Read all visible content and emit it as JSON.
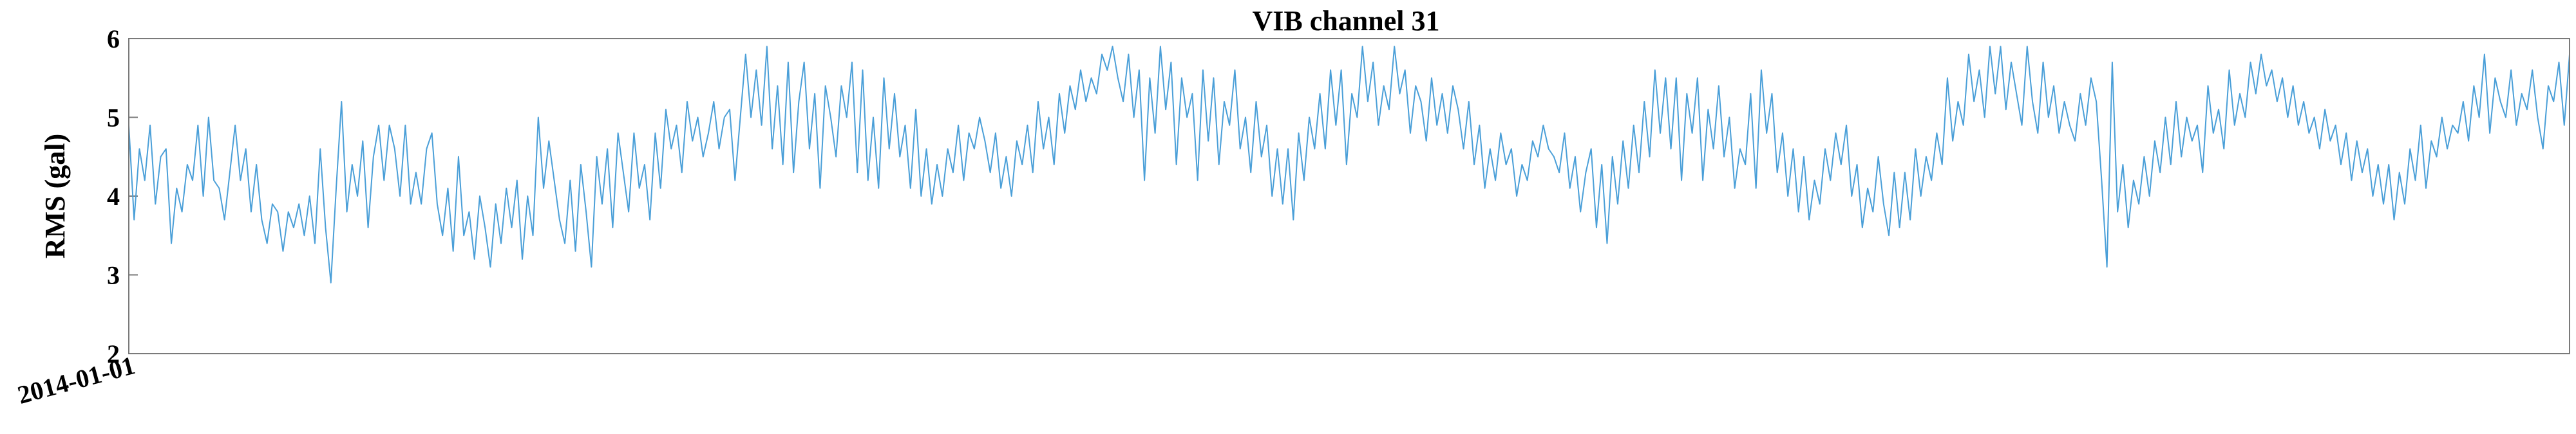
{
  "chart_data": {
    "type": "line",
    "title": "VIB channel 31",
    "xlabel": "",
    "ylabel": "RMS (gal)",
    "ylim": [
      2,
      6
    ],
    "yticks": [
      2,
      3,
      4,
      5,
      6
    ],
    "xticks": [
      "2014-01-01"
    ],
    "grid": false,
    "legend": "none",
    "series_color": "#4a9fd8",
    "series": [
      {
        "values": [
          4.9,
          3.7,
          4.6,
          4.2,
          4.9,
          3.9,
          4.5,
          4.6,
          3.4,
          4.1,
          3.8,
          4.4,
          4.2,
          4.9,
          4.0,
          5.0,
          4.2,
          4.1,
          3.7,
          4.3,
          4.9,
          4.2,
          4.6,
          3.8,
          4.4,
          3.7,
          3.4,
          3.9,
          3.8,
          3.3,
          3.8,
          3.6,
          3.9,
          3.5,
          4.0,
          3.4,
          4.6,
          3.6,
          2.9,
          4.1,
          5.2,
          3.8,
          4.4,
          4.0,
          4.7,
          3.6,
          4.5,
          4.9,
          4.2,
          4.9,
          4.6,
          4.0,
          4.9,
          3.9,
          4.3,
          3.9,
          4.6,
          4.8,
          3.9,
          3.5,
          4.1,
          3.3,
          4.5,
          3.5,
          3.8,
          3.2,
          4.0,
          3.6,
          3.1,
          3.9,
          3.4,
          4.1,
          3.6,
          4.2,
          3.2,
          4.0,
          3.5,
          5.0,
          4.1,
          4.7,
          4.2,
          3.7,
          3.4,
          4.2,
          3.3,
          4.4,
          3.8,
          3.1,
          4.5,
          3.9,
          4.6,
          3.6,
          4.8,
          4.3,
          3.8,
          4.8,
          4.1,
          4.4,
          3.7,
          4.8,
          4.1,
          5.1,
          4.6,
          4.9,
          4.3,
          5.2,
          4.7,
          5.0,
          4.5,
          4.8,
          5.2,
          4.6,
          5.0,
          5.1,
          4.2,
          5.0,
          5.8,
          5.0,
          5.6,
          4.9,
          5.9,
          4.6,
          5.4,
          4.4,
          5.7,
          4.3,
          5.2,
          5.7,
          4.6,
          5.3,
          4.1,
          5.4,
          5.0,
          4.5,
          5.4,
          5.0,
          5.7,
          4.3,
          5.6,
          4.2,
          5.0,
          4.1,
          5.5,
          4.6,
          5.3,
          4.5,
          4.9,
          4.1,
          5.1,
          4.0,
          4.6,
          3.9,
          4.4,
          4.0,
          4.6,
          4.3,
          4.9,
          4.2,
          4.8,
          4.6,
          5.0,
          4.7,
          4.3,
          4.8,
          4.1,
          4.5,
          4.0,
          4.7,
          4.4,
          4.9,
          4.3,
          5.2,
          4.6,
          5.0,
          4.4,
          5.3,
          4.8,
          5.4,
          5.1,
          5.6,
          5.2,
          5.5,
          5.3,
          5.8,
          5.6,
          5.9,
          5.5,
          5.2,
          5.8,
          5.0,
          5.6,
          4.2,
          5.5,
          4.8,
          5.9,
          5.1,
          5.7,
          4.4,
          5.5,
          5.0,
          5.3,
          4.2,
          5.6,
          4.7,
          5.5,
          4.4,
          5.2,
          4.9,
          5.6,
          4.6,
          5.0,
          4.3,
          5.2,
          4.5,
          4.9,
          4.0,
          4.6,
          3.9,
          4.6,
          3.7,
          4.8,
          4.2,
          5.0,
          4.6,
          5.3,
          4.6,
          5.6,
          4.9,
          5.6,
          4.4,
          5.3,
          5.0,
          5.9,
          5.2,
          5.7,
          4.9,
          5.4,
          5.1,
          5.9,
          5.3,
          5.6,
          4.8,
          5.4,
          5.2,
          4.7,
          5.5,
          4.9,
          5.3,
          4.8,
          5.4,
          5.1,
          4.6,
          5.2,
          4.4,
          4.9,
          4.1,
          4.6,
          4.2,
          4.8,
          4.4,
          4.6,
          4.0,
          4.4,
          4.2,
          4.7,
          4.5,
          4.9,
          4.6,
          4.5,
          4.3,
          4.8,
          4.1,
          4.5,
          3.8,
          4.3,
          4.6,
          3.6,
          4.4,
          3.4,
          4.5,
          3.9,
          4.7,
          4.1,
          4.9,
          4.3,
          5.2,
          4.5,
          5.6,
          4.8,
          5.5,
          4.6,
          5.5,
          4.2,
          5.3,
          4.8,
          5.5,
          4.2,
          5.1,
          4.6,
          5.4,
          4.5,
          5.0,
          4.1,
          4.6,
          4.4,
          5.3,
          4.1,
          5.6,
          4.8,
          5.3,
          4.3,
          4.8,
          4.0,
          4.6,
          3.8,
          4.5,
          3.7,
          4.2,
          3.9,
          4.6,
          4.2,
          4.8,
          4.4,
          4.9,
          4.0,
          4.4,
          3.6,
          4.1,
          3.8,
          4.5,
          3.9,
          3.5,
          4.3,
          3.6,
          4.3,
          3.7,
          4.6,
          4.0,
          4.5,
          4.2,
          4.8,
          4.4,
          5.5,
          4.7,
          5.2,
          4.9,
          5.8,
          5.2,
          5.6,
          5.0,
          5.9,
          5.3,
          5.9,
          5.1,
          5.7,
          5.3,
          4.9,
          5.9,
          5.2,
          4.8,
          5.7,
          5.0,
          5.4,
          4.8,
          5.2,
          4.9,
          4.7,
          5.3,
          4.9,
          5.5,
          5.2,
          4.2,
          3.1,
          5.7,
          3.8,
          4.4,
          3.6,
          4.2,
          3.9,
          4.5,
          4.0,
          4.7,
          4.3,
          5.0,
          4.4,
          5.2,
          4.5,
          5.0,
          4.7,
          4.9,
          4.3,
          5.4,
          4.8,
          5.1,
          4.6,
          5.6,
          4.9,
          5.3,
          5.0,
          5.7,
          5.3,
          5.8,
          5.4,
          5.6,
          5.2,
          5.5,
          5.0,
          5.4,
          4.9,
          5.2,
          4.8,
          5.0,
          4.6,
          5.1,
          4.7,
          4.9,
          4.4,
          4.8,
          4.2,
          4.7,
          4.3,
          4.6,
          4.0,
          4.4,
          3.9,
          4.4,
          3.7,
          4.3,
          3.9,
          4.6,
          4.2,
          4.9,
          4.1,
          4.7,
          4.5,
          5.0,
          4.6,
          4.9,
          4.8,
          5.2,
          4.7,
          5.4,
          5.0,
          5.8,
          4.8,
          5.5,
          5.2,
          5.0,
          5.6,
          4.9,
          5.3,
          5.1,
          5.6,
          5.0,
          4.6,
          5.4,
          5.2,
          5.7,
          4.9,
          5.8
        ]
      }
    ]
  }
}
